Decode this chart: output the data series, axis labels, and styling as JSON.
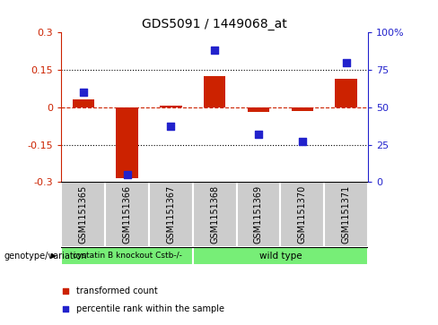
{
  "title": "GDS5091 / 1449068_at",
  "samples": [
    "GSM1151365",
    "GSM1151366",
    "GSM1151367",
    "GSM1151368",
    "GSM1151369",
    "GSM1151370",
    "GSM1151371"
  ],
  "bar_values": [
    0.03,
    -0.285,
    0.005,
    0.125,
    -0.02,
    -0.015,
    0.115
  ],
  "scatter_values": [
    60,
    5,
    37,
    88,
    32,
    27,
    80
  ],
  "ylim_left": [
    -0.3,
    0.3
  ],
  "ylim_right": [
    0,
    100
  ],
  "yticks_left": [
    -0.3,
    -0.15,
    0.0,
    0.15,
    0.3
  ],
  "yticks_right": [
    0,
    25,
    50,
    75,
    100
  ],
  "ytick_labels_left": [
    "-0.3",
    "-0.15",
    "0",
    "0.15",
    "0.3"
  ],
  "ytick_labels_right": [
    "0",
    "25",
    "50",
    "75",
    "100%"
  ],
  "dotted_lines": [
    -0.15,
    0.15
  ],
  "bar_color": "#cc2200",
  "scatter_color": "#2222cc",
  "group1_label": "cystatin B knockout Cstb-/-",
  "group1_count": 3,
  "group2_label": "wild type",
  "group2_count": 4,
  "group_color": "#77ee77",
  "gray_color": "#cccccc",
  "legend_items": [
    {
      "color": "#cc2200",
      "label": "transformed count"
    },
    {
      "color": "#2222cc",
      "label": "percentile rank within the sample"
    }
  ],
  "genotype_label": "genotype/variation",
  "bar_width": 0.5,
  "scatter_size": 35,
  "title_fontsize": 10,
  "tick_fontsize": 7,
  "axis_fontsize": 8
}
